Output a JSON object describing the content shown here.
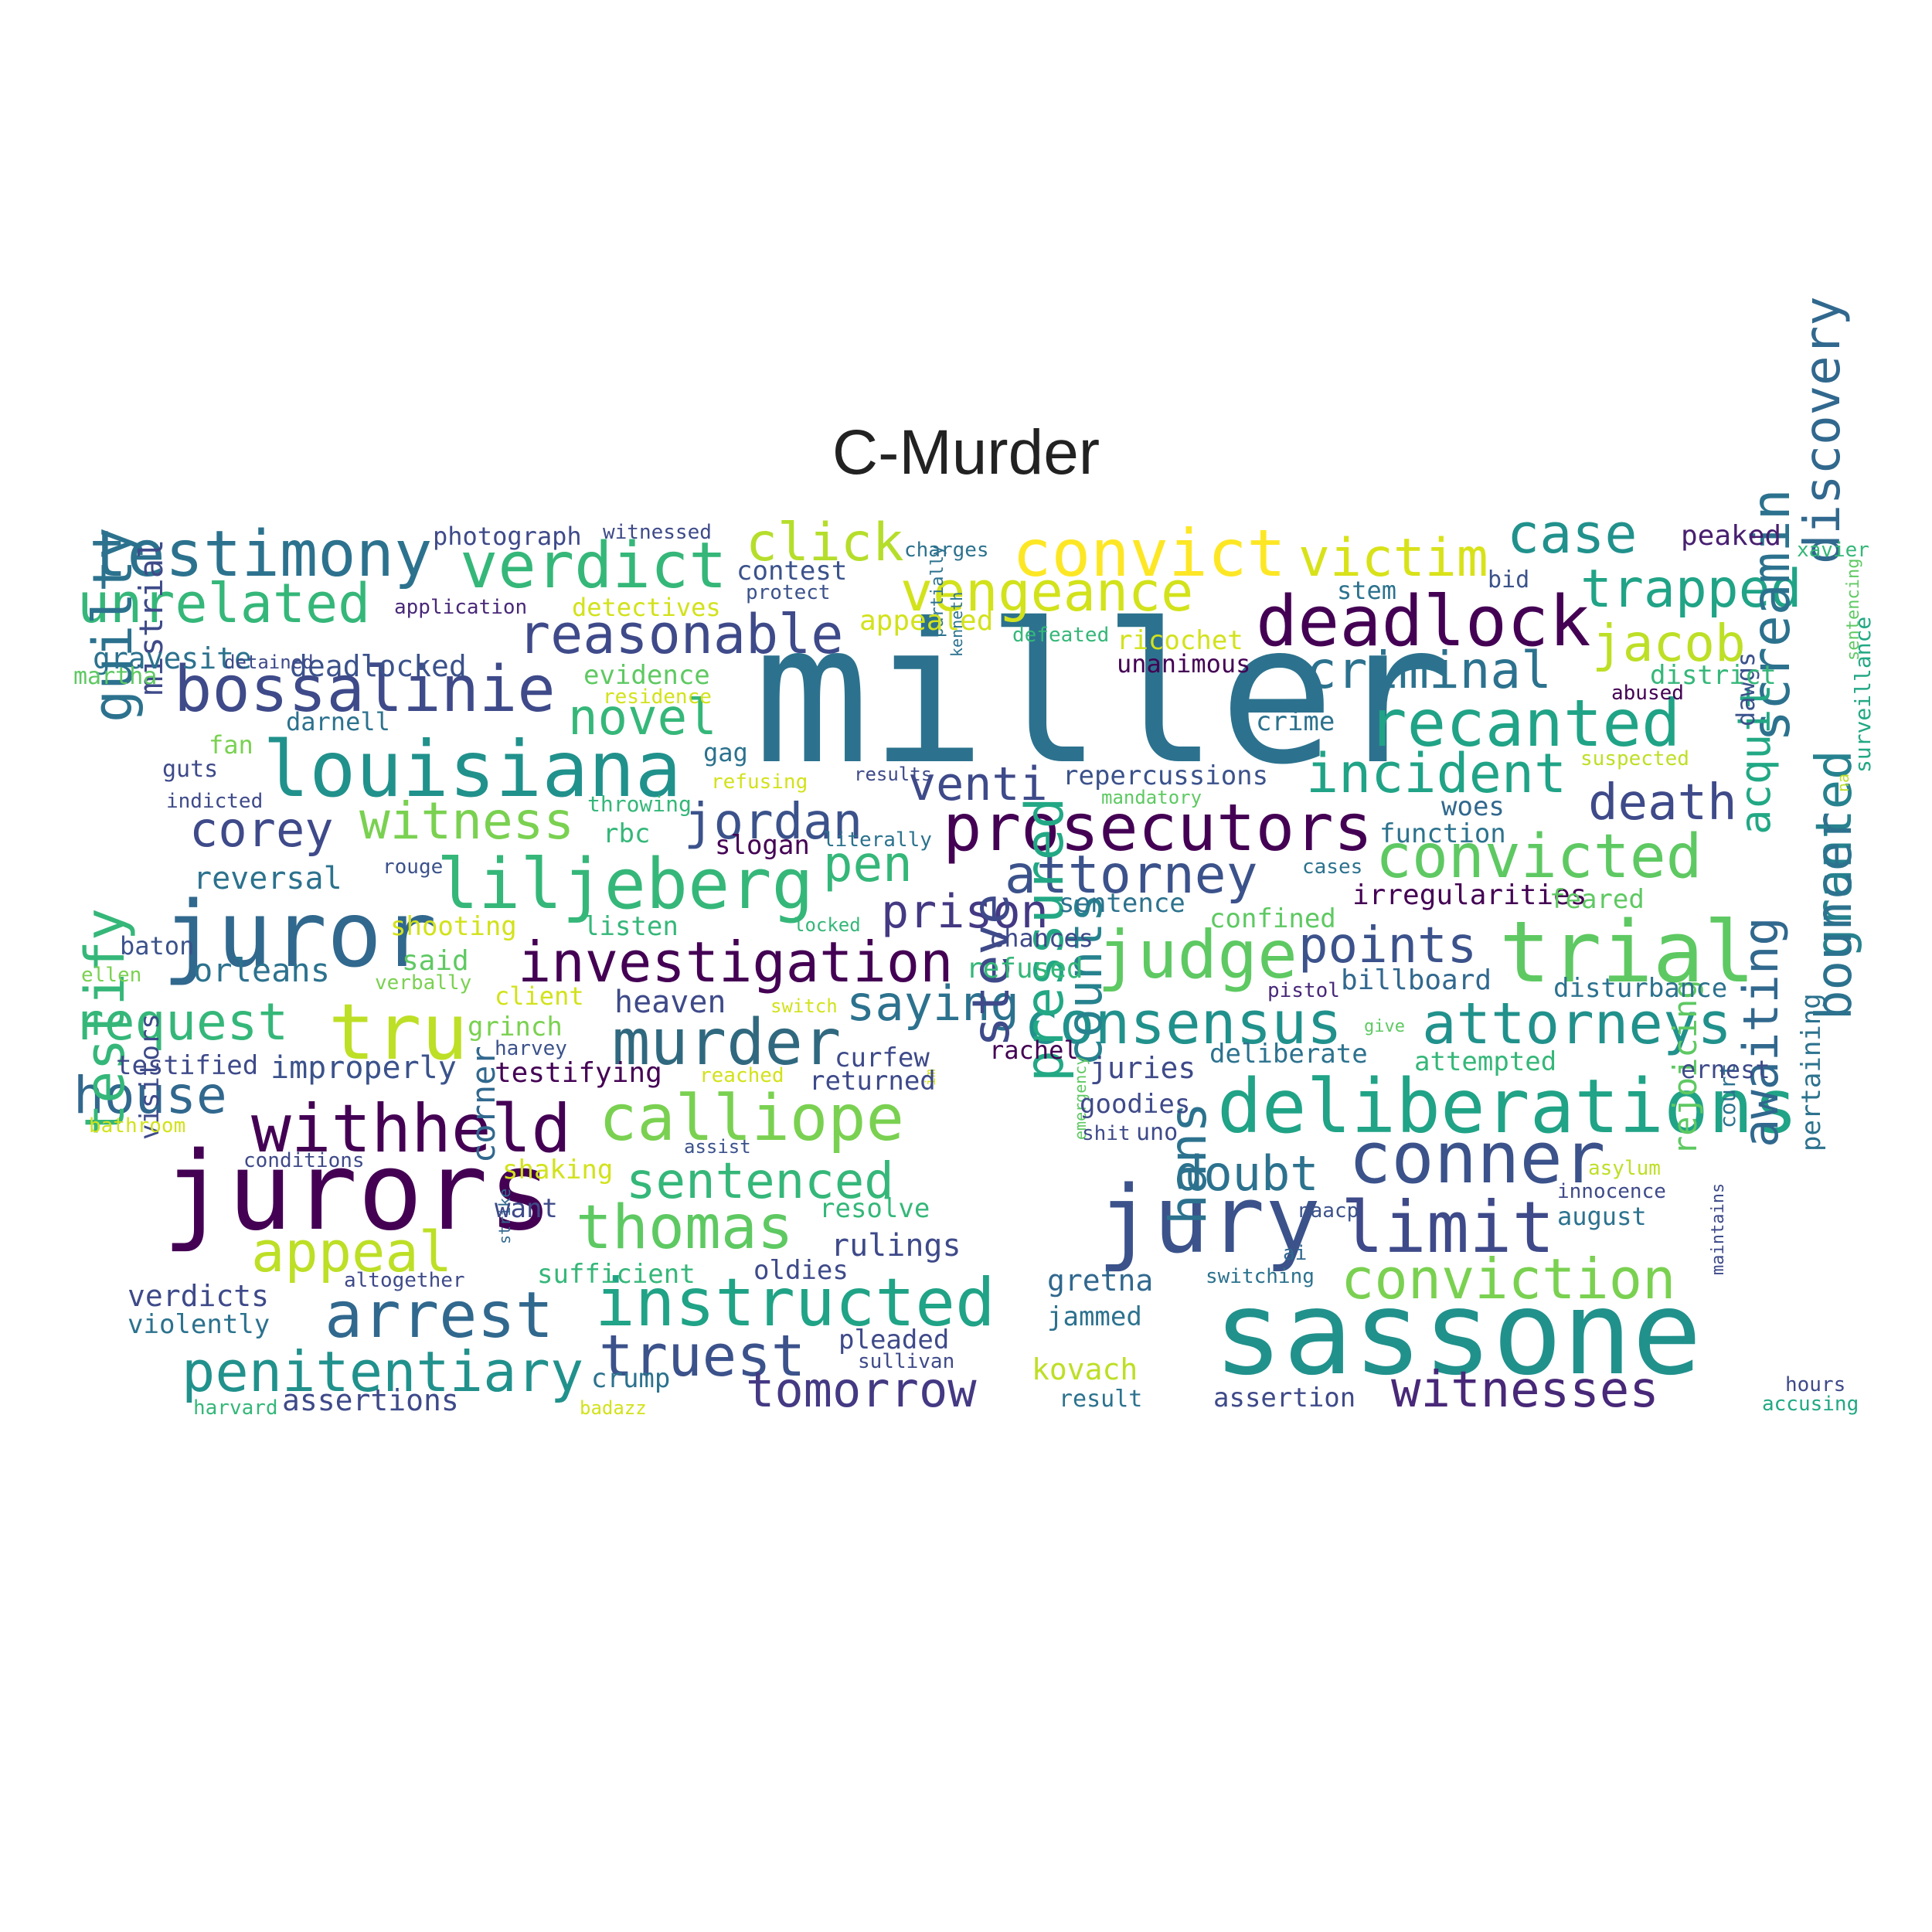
{
  "title": "C-Murder",
  "palette": "viridis",
  "words": [
    {
      "text": "miller",
      "color": "#2c728e"
    },
    {
      "text": "sassone",
      "color": "#21918c"
    },
    {
      "text": "jurors",
      "color": "#440154"
    },
    {
      "text": "juror",
      "color": "#31688e"
    },
    {
      "text": "jury",
      "color": "#3b528b"
    },
    {
      "text": "trial",
      "color": "#5ec962"
    },
    {
      "text": "louisiana",
      "color": "#21918c"
    },
    {
      "text": "deliberations",
      "color": "#20a386"
    },
    {
      "text": "conner",
      "color": "#3b528b"
    },
    {
      "text": "limit",
      "color": "#3e4a89"
    },
    {
      "text": "deadlock",
      "color": "#440154"
    },
    {
      "text": "recanted",
      "color": "#20a386"
    },
    {
      "text": "convict",
      "color": "#fde725"
    },
    {
      "text": "liljeberg",
      "color": "#35b779"
    },
    {
      "text": "prosecutors",
      "color": "#440154"
    },
    {
      "text": "instructed",
      "color": "#20a386"
    },
    {
      "text": "judge",
      "color": "#5ec962"
    },
    {
      "text": "bossalinie",
      "color": "#3e4a89"
    },
    {
      "text": "testimony",
      "color": "#2c728e"
    },
    {
      "text": "verdict",
      "color": "#35b779"
    },
    {
      "text": "tru",
      "color": "#bddf26"
    },
    {
      "text": "withheld",
      "color": "#440154"
    },
    {
      "text": "calliope",
      "color": "#7ad151"
    },
    {
      "text": "arrest",
      "color": "#31688e"
    },
    {
      "text": "murder",
      "color": "#30697f"
    },
    {
      "text": "investigation",
      "color": "#440154"
    },
    {
      "text": "attorneys",
      "color": "#21918c"
    },
    {
      "text": "consensus",
      "color": "#21918c"
    },
    {
      "text": "convicted",
      "color": "#5ec962"
    },
    {
      "text": "thomas",
      "color": "#5ec962"
    },
    {
      "text": "truest",
      "color": "#3b528b"
    },
    {
      "text": "conviction",
      "color": "#7ad151"
    },
    {
      "text": "penitentiary",
      "color": "#21918c"
    },
    {
      "text": "unrelated",
      "color": "#35b779"
    },
    {
      "text": "reasonable",
      "color": "#3e4a89"
    },
    {
      "text": "vengeance",
      "color": "#d2e21b"
    },
    {
      "text": "incident",
      "color": "#20a386"
    },
    {
      "text": "trapped",
      "color": "#20a386"
    },
    {
      "text": "case",
      "color": "#21918c"
    },
    {
      "text": "victim",
      "color": "#d8e219"
    },
    {
      "text": "click",
      "color": "#b5de2b"
    },
    {
      "text": "criminal",
      "color": "#2c728e"
    },
    {
      "text": "jacob",
      "color": "#bddf26"
    },
    {
      "text": "attorney",
      "color": "#3b528b"
    },
    {
      "text": "witness",
      "color": "#7ad151"
    },
    {
      "text": "jordan",
      "color": "#3b528b"
    },
    {
      "text": "corey",
      "color": "#3e4a89"
    },
    {
      "text": "novel",
      "color": "#35b779"
    },
    {
      "text": "venti",
      "color": "#3e4a89"
    },
    {
      "text": "points",
      "color": "#3b528b"
    },
    {
      "text": "death",
      "color": "#3e4a89"
    },
    {
      "text": "pen",
      "color": "#35b779"
    },
    {
      "text": "prison",
      "color": "#443983"
    },
    {
      "text": "saying",
      "color": "#2c728e"
    },
    {
      "text": "request",
      "color": "#35b779"
    },
    {
      "text": "house",
      "color": "#31688e"
    },
    {
      "text": "sentenced",
      "color": "#35b779"
    },
    {
      "text": "appeal",
      "color": "#bddf26"
    },
    {
      "text": "doubt",
      "color": "#2c728e"
    },
    {
      "text": "tomorrow",
      "color": "#443983"
    },
    {
      "text": "witnesses",
      "color": "#482878"
    },
    {
      "text": "steve",
      "color": "#3e4a89"
    },
    {
      "text": "pressured",
      "color": "#22a884"
    },
    {
      "text": "counts",
      "color": "#26828e"
    },
    {
      "text": "hans",
      "color": "#2c728e"
    },
    {
      "text": "screamin",
      "color": "#2c728e"
    },
    {
      "text": "granted",
      "color": "#26828e"
    },
    {
      "text": "discovery",
      "color": "#31688e"
    },
    {
      "text": "bouncer",
      "color": "#2c728e"
    },
    {
      "text": "awaiting",
      "color": "#31688e"
    },
    {
      "text": "acquit",
      "color": "#22a884"
    },
    {
      "text": "rejoicing",
      "color": "#5ec962"
    },
    {
      "text": "guilty",
      "color": "#2c728e"
    },
    {
      "text": "testify",
      "color": "#35b779"
    },
    {
      "text": "mistrial",
      "color": "#3e4a89"
    },
    {
      "text": "corner",
      "color": "#31688e"
    },
    {
      "text": "visitors",
      "color": "#3e4a89"
    },
    {
      "text": "court",
      "color": "#2c728e"
    },
    {
      "text": "pertaining",
      "color": "#2c728e"
    },
    {
      "text": "surveillance",
      "color": "#22a884"
    },
    {
      "text": "dawgs",
      "color": "#3b528b"
    },
    {
      "text": "sentencing",
      "color": "#5ec962"
    },
    {
      "text": "na",
      "color": "#bddf26"
    },
    {
      "text": "maintains",
      "color": "#3e4a89"
    },
    {
      "text": "partially",
      "color": "#2c728e"
    },
    {
      "text": "kenneth",
      "color": "#2c728e"
    },
    {
      "text": "emergency",
      "color": "#5ec962"
    },
    {
      "text": "strike",
      "color": "#31688e"
    },
    {
      "text": "im",
      "color": "#d2e21b"
    },
    {
      "text": "gravesite",
      "color": "#2c728e"
    },
    {
      "text": "deadlocked",
      "color": "#3b528b"
    },
    {
      "text": "photograph",
      "color": "#3e4a89"
    },
    {
      "text": "witnessed",
      "color": "#3e4a89"
    },
    {
      "text": "application",
      "color": "#482878"
    },
    {
      "text": "detectives",
      "color": "#d2e21b"
    },
    {
      "text": "contest",
      "color": "#3b528b"
    },
    {
      "text": "protect",
      "color": "#3b528b"
    },
    {
      "text": "charges",
      "color": "#2c728e"
    },
    {
      "text": "appealed",
      "color": "#d2e21b"
    },
    {
      "text": "defeated",
      "color": "#35b779"
    },
    {
      "text": "ricochet",
      "color": "#d2e21b"
    },
    {
      "text": "unanimous",
      "color": "#440154"
    },
    {
      "text": "evidence",
      "color": "#5ec962"
    },
    {
      "text": "residence",
      "color": "#d2e21b"
    },
    {
      "text": "peaked",
      "color": "#481f70"
    },
    {
      "text": "xavier",
      "color": "#35b779"
    },
    {
      "text": "stem",
      "color": "#2c728e"
    },
    {
      "text": "bid",
      "color": "#3b528b"
    },
    {
      "text": "district",
      "color": "#35b779"
    },
    {
      "text": "abused",
      "color": "#440154"
    },
    {
      "text": "suspected",
      "color": "#bddf26"
    },
    {
      "text": "martha",
      "color": "#5ec962"
    },
    {
      "text": "detained",
      "color": "#3e4a89"
    },
    {
      "text": "darnell",
      "color": "#2c728e"
    },
    {
      "text": "fan",
      "color": "#7ad151"
    },
    {
      "text": "guts",
      "color": "#3e4a89"
    },
    {
      "text": "indicted",
      "color": "#3e4a89"
    },
    {
      "text": "gag",
      "color": "#2c728e"
    },
    {
      "text": "refusing",
      "color": "#d2e21b"
    },
    {
      "text": "results",
      "color": "#3e4a89"
    },
    {
      "text": "crime",
      "color": "#2c728e"
    },
    {
      "text": "repercussions",
      "color": "#3b528b"
    },
    {
      "text": "mandatory",
      "color": "#5ec962"
    },
    {
      "text": "throwing",
      "color": "#35b779"
    },
    {
      "text": "rbc",
      "color": "#35b779"
    },
    {
      "text": "slogan",
      "color": "#440154"
    },
    {
      "text": "literally",
      "color": "#2c728e"
    },
    {
      "text": "woes",
      "color": "#31688e"
    },
    {
      "text": "function",
      "color": "#2c728e"
    },
    {
      "text": "reversal",
      "color": "#2c728e"
    },
    {
      "text": "rouge",
      "color": "#3b528b"
    },
    {
      "text": "cases",
      "color": "#2c728e"
    },
    {
      "text": "irregularities",
      "color": "#440154"
    },
    {
      "text": "feared",
      "color": "#5ec962"
    },
    {
      "text": "baton",
      "color": "#3b528b"
    },
    {
      "text": "shooting",
      "color": "#d2e21b"
    },
    {
      "text": "listen",
      "color": "#35b779"
    },
    {
      "text": "locked",
      "color": "#35b779"
    },
    {
      "text": "sentence",
      "color": "#2c728e"
    },
    {
      "text": "confined",
      "color": "#5ec962"
    },
    {
      "text": "ellen",
      "color": "#7ad151"
    },
    {
      "text": "orleans",
      "color": "#2c728e"
    },
    {
      "text": "said",
      "color": "#5ec962"
    },
    {
      "text": "verbally",
      "color": "#7ad151"
    },
    {
      "text": "refused",
      "color": "#35b779"
    },
    {
      "text": "billboard",
      "color": "#31688e"
    },
    {
      "text": "pistol",
      "color": "#482878"
    },
    {
      "text": "disturbance",
      "color": "#2c728e"
    },
    {
      "text": "client",
      "color": "#d2e21b"
    },
    {
      "text": "heaven",
      "color": "#3e4a89"
    },
    {
      "text": "switch",
      "color": "#d2e21b"
    },
    {
      "text": "give",
      "color": "#5ec962"
    },
    {
      "text": "grinch",
      "color": "#7ad151"
    },
    {
      "text": "harvey",
      "color": "#3b528b"
    },
    {
      "text": "rachel",
      "color": "#440154"
    },
    {
      "text": "juries",
      "color": "#3e4a89"
    },
    {
      "text": "deliberate",
      "color": "#2c728e"
    },
    {
      "text": "attempted",
      "color": "#35b779"
    },
    {
      "text": "testified",
      "color": "#3e4a89"
    },
    {
      "text": "improperly",
      "color": "#3b528b"
    },
    {
      "text": "testifying",
      "color": "#440154"
    },
    {
      "text": "reached",
      "color": "#d2e21b"
    },
    {
      "text": "curfew",
      "color": "#3e4a89"
    },
    {
      "text": "returned",
      "color": "#3e4a89"
    },
    {
      "text": "ernest",
      "color": "#3e4a89"
    },
    {
      "text": "goodies",
      "color": "#3e4a89"
    },
    {
      "text": "shit",
      "color": "#3e4a89"
    },
    {
      "text": "uno",
      "color": "#3e4a89"
    },
    {
      "text": "bathroom",
      "color": "#d2e21b"
    },
    {
      "text": "assist",
      "color": "#3b528b"
    },
    {
      "text": "conditions",
      "color": "#3e4a89"
    },
    {
      "text": "shaking",
      "color": "#d2e21b"
    },
    {
      "text": "want",
      "color": "#3e4a89"
    },
    {
      "text": "resolve",
      "color": "#35b779"
    },
    {
      "text": "rulings",
      "color": "#3e4a89"
    },
    {
      "text": "naacp",
      "color": "#3b528b"
    },
    {
      "text": "august",
      "color": "#2c728e"
    },
    {
      "text": "asylum",
      "color": "#bddf26"
    },
    {
      "text": "innocence",
      "color": "#3e4a89"
    },
    {
      "text": "altogether",
      "color": "#3e4a89"
    },
    {
      "text": "sufficient",
      "color": "#35b779"
    },
    {
      "text": "oldies",
      "color": "#3e4a89"
    },
    {
      "text": "ai",
      "color": "#31688e"
    },
    {
      "text": "switching",
      "color": "#2c728e"
    },
    {
      "text": "gretna",
      "color": "#31688e"
    },
    {
      "text": "verdicts",
      "color": "#3e4a89"
    },
    {
      "text": "violently",
      "color": "#2c728e"
    },
    {
      "text": "jammed",
      "color": "#2c728e"
    },
    {
      "text": "pleaded",
      "color": "#3e4a89"
    },
    {
      "text": "sullivan",
      "color": "#3e4a89"
    },
    {
      "text": "kovach",
      "color": "#bddf26"
    },
    {
      "text": "crump",
      "color": "#2c728e"
    },
    {
      "text": "hours",
      "color": "#3e4a89"
    },
    {
      "text": "accusing",
      "color": "#22a884"
    },
    {
      "text": "harvard",
      "color": "#35b779"
    },
    {
      "text": "assertions",
      "color": "#3e4a89"
    },
    {
      "text": "badazz",
      "color": "#d2e21b"
    },
    {
      "text": "result",
      "color": "#2c728e"
    },
    {
      "text": "assertion",
      "color": "#3e4a89"
    },
    {
      "text": "chances",
      "color": "#3e4a89"
    }
  ]
}
